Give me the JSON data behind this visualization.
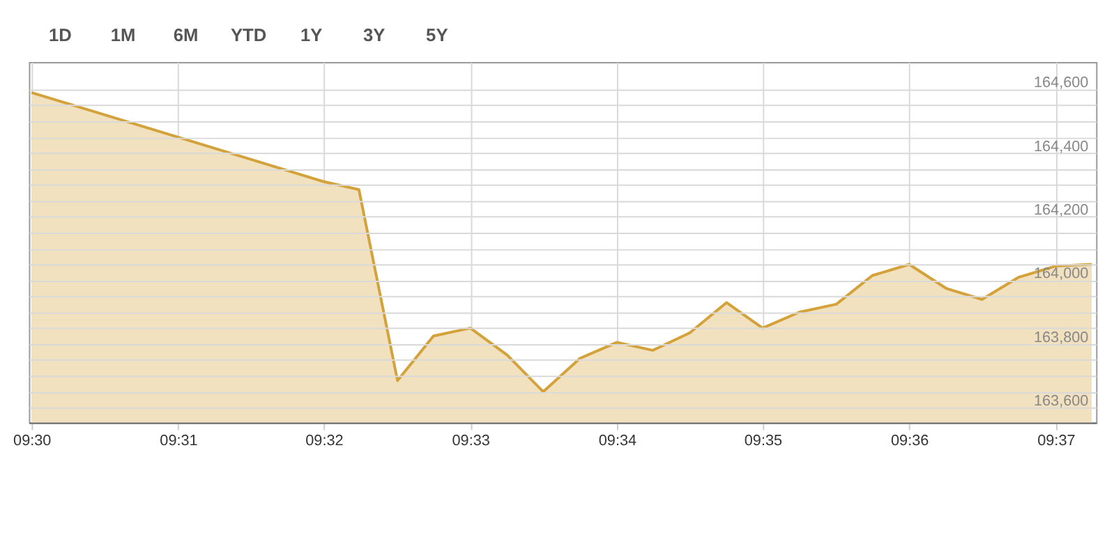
{
  "chart_data": {
    "type": "area",
    "annotations": [
      "1D",
      "1M",
      "6M",
      "YTD",
      "1Y",
      "3Y",
      "5Y"
    ],
    "x": [
      9.5,
      9.5167,
      9.5333,
      9.5373,
      9.5417,
      9.5458,
      9.55,
      9.5542,
      9.5583,
      9.5625,
      9.5667,
      9.5708,
      9.575,
      9.5792,
      9.5833,
      9.5875,
      9.5917,
      9.5958,
      9.6,
      9.6042,
      9.6083,
      9.6125,
      9.6167,
      9.6208
    ],
    "series": [
      {
        "color": "#d4a23a",
        "values": [
          164590,
          164450,
          164310,
          164285,
          163685,
          163825,
          163850,
          163765,
          163650,
          163755,
          163805,
          163780,
          163835,
          163930,
          163850,
          163900,
          163925,
          164015,
          164050,
          163975,
          163940,
          164010,
          164045,
          164050
        ]
      }
    ],
    "xlim": [
      9.4997,
      9.6213
    ],
    "xticks": [
      {
        "value": 9.5,
        "label": "09:30"
      },
      {
        "value": 9.5167,
        "label": "09:31"
      },
      {
        "value": 9.5333,
        "label": "09:32"
      },
      {
        "value": 9.55,
        "label": "09:33"
      },
      {
        "value": 9.5667,
        "label": "09:34"
      },
      {
        "value": 9.5833,
        "label": "09:35"
      },
      {
        "value": 9.6,
        "label": "09:36"
      },
      {
        "value": 9.6167,
        "label": "09:37"
      }
    ],
    "ylim": [
      163553,
      164686
    ],
    "yticks": [
      {
        "value": 163600,
        "label": "163,600"
      },
      {
        "value": 163650,
        "label": null
      },
      {
        "value": 163700,
        "label": null
      },
      {
        "value": 163750,
        "label": null
      },
      {
        "value": 163800,
        "label": "163,800"
      },
      {
        "value": 163850,
        "label": null
      },
      {
        "value": 163900,
        "label": null
      },
      {
        "value": 163950,
        "label": null
      },
      {
        "value": 164000,
        "label": "164,000"
      },
      {
        "value": 164050,
        "label": null
      },
      {
        "value": 164100,
        "label": null
      },
      {
        "value": 164150,
        "label": null
      },
      {
        "value": 164200,
        "label": "164,200"
      },
      {
        "value": 164250,
        "label": null
      },
      {
        "value": 164300,
        "label": null
      },
      {
        "value": 164350,
        "label": null
      },
      {
        "value": 164400,
        "label": "164,400"
      },
      {
        "value": 164450,
        "label": null
      },
      {
        "value": 164500,
        "label": null
      },
      {
        "value": 164550,
        "label": null
      },
      {
        "value": 164600,
        "label": "164,600"
      }
    ],
    "grid": true
  }
}
